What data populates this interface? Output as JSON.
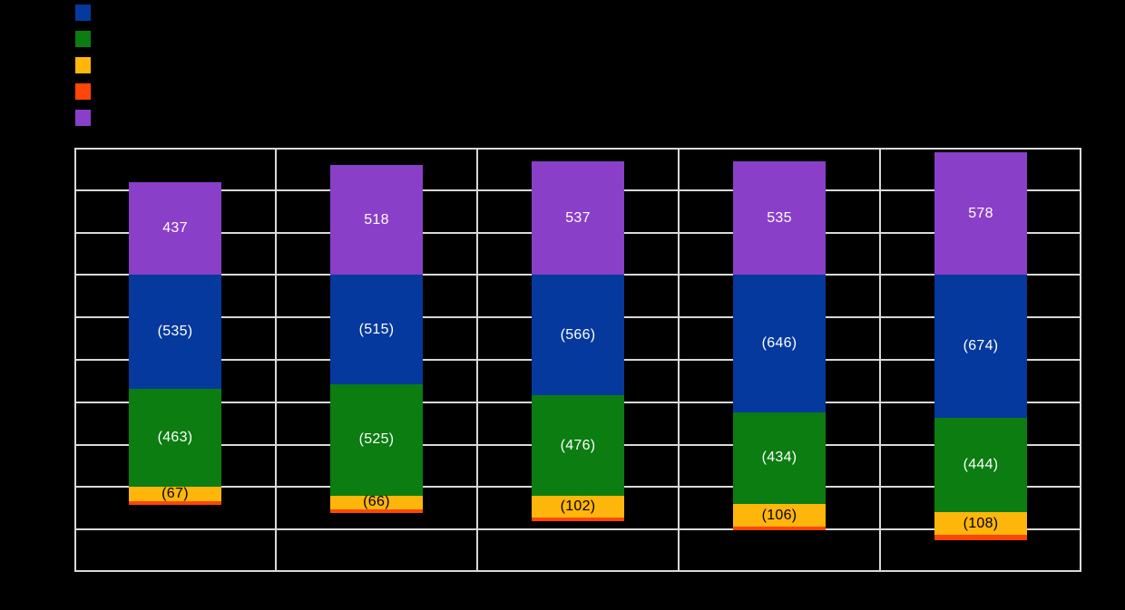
{
  "background_color": "#000000",
  "legend": {
    "position": "top-left",
    "items": [
      {
        "name": "series-blue",
        "color": "#05399D"
      },
      {
        "name": "series-green",
        "color": "#0B7D11"
      },
      {
        "name": "series-yellow",
        "color": "#FFB60A"
      },
      {
        "name": "series-red",
        "color": "#FF4508"
      },
      {
        "name": "series-purple",
        "color": "#8A3FC9"
      }
    ]
  },
  "chart_data": {
    "type": "bar",
    "stacked": true,
    "title": "",
    "xlabel": "",
    "ylabel": "",
    "categories": [
      "",
      "",
      "",
      "",
      ""
    ],
    "series": [
      {
        "name": "series-blue",
        "color": "#05399D",
        "label_color": "#FFFFFF",
        "values": [
          -535,
          -515,
          -566,
          -646,
          -674
        ],
        "labels": [
          "(535)",
          "(515)",
          "(566)",
          "(646)",
          "(674)"
        ]
      },
      {
        "name": "series-green",
        "color": "#0B7D11",
        "label_color": "#FFFFFF",
        "values": [
          -463,
          -525,
          -476,
          -434,
          -444
        ],
        "labels": [
          "(463)",
          "(525)",
          "(476)",
          "(434)",
          "(444)"
        ]
      },
      {
        "name": "series-yellow",
        "color": "#FFB60A",
        "label_color": "#000000",
        "values": [
          -67,
          -66,
          -102,
          -106,
          -108
        ],
        "labels": [
          "(67)",
          "(66)",
          "(102)",
          "(106)",
          "(108)"
        ]
      },
      {
        "name": "series-red",
        "color": "#FF4508",
        "label_color": "#FFFFFF",
        "values": [
          -18,
          -17,
          -18,
          -17,
          -23
        ],
        "labels": [
          "",
          "",
          "",
          "",
          ""
        ]
      },
      {
        "name": "series-purple",
        "color": "#8A3FC9",
        "label_color": "#FFFFFF",
        "values": [
          437,
          518,
          537,
          535,
          578
        ],
        "labels": [
          "437",
          "518",
          "537",
          "535",
          "578"
        ]
      }
    ],
    "ylim": [
      -1400,
      600
    ],
    "ytick_step": 200,
    "grid": true,
    "grid_color": "#D9D9D9",
    "plot_background": "#000000",
    "legend_position": "top-left"
  }
}
